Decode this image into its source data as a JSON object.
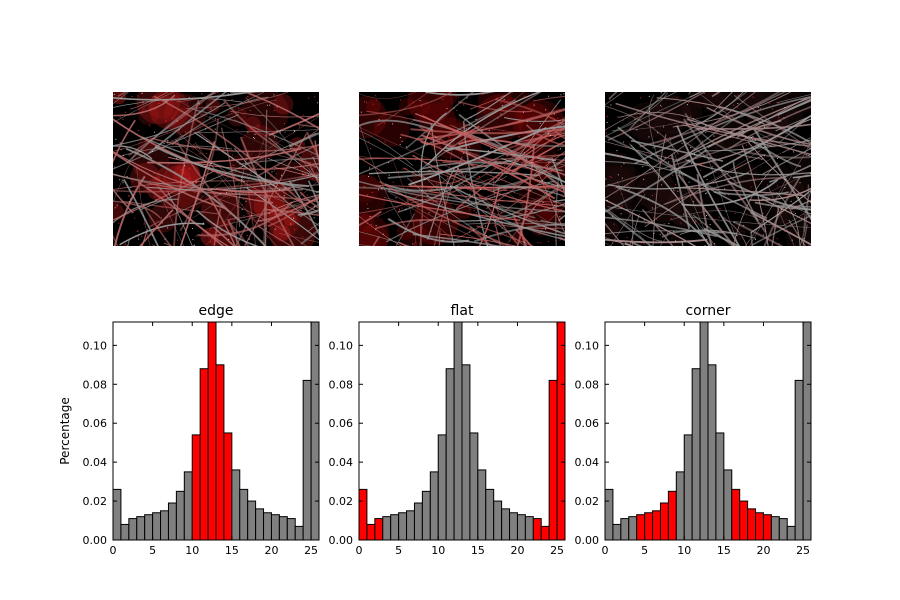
{
  "colors": {
    "highlight": "#ff0000",
    "default": "#808080",
    "edge": "#000000"
  },
  "images": [
    {
      "name": "edge",
      "tint": "#c21a1a",
      "fibers": "#b86a6a"
    },
    {
      "name": "flat",
      "tint": "#7a0707",
      "fibers": "#c06060"
    },
    {
      "name": "corner",
      "tint": "#2a1010",
      "fibers": "#a78a8a"
    }
  ],
  "chart_data": [
    {
      "type": "bar",
      "title": "edge",
      "ylabel": "Percentage",
      "xlim": [
        0,
        26
      ],
      "ylim": [
        0,
        0.112
      ],
      "xticks": [
        "0",
        "5",
        "10",
        "15",
        "20",
        "25"
      ],
      "yticks": [
        "0.00",
        "0.02",
        "0.04",
        "0.06",
        "0.08",
        "0.10"
      ],
      "bins": [
        0,
        1,
        2,
        3,
        4,
        5,
        6,
        7,
        8,
        9,
        10,
        11,
        12,
        13,
        14,
        15,
        16,
        17,
        18,
        19,
        20,
        21,
        22,
        23,
        24,
        25
      ],
      "values": [
        0.026,
        0.008,
        0.011,
        0.012,
        0.013,
        0.014,
        0.015,
        0.019,
        0.025,
        0.035,
        0.054,
        0.088,
        0.115,
        0.09,
        0.055,
        0.036,
        0.026,
        0.02,
        0.016,
        0.014,
        0.013,
        0.012,
        0.011,
        0.007,
        0.082,
        0.115
      ],
      "highlighted_bins": [
        10,
        11,
        12,
        13,
        14
      ]
    },
    {
      "type": "bar",
      "title": "flat",
      "ylabel": "",
      "xlim": [
        0,
        26
      ],
      "ylim": [
        0,
        0.112
      ],
      "xticks": [
        "0",
        "5",
        "10",
        "15",
        "20",
        "25"
      ],
      "yticks": [
        "0.00",
        "0.02",
        "0.04",
        "0.06",
        "0.08",
        "0.10"
      ],
      "bins": [
        0,
        1,
        2,
        3,
        4,
        5,
        6,
        7,
        8,
        9,
        10,
        11,
        12,
        13,
        14,
        15,
        16,
        17,
        18,
        19,
        20,
        21,
        22,
        23,
        24,
        25
      ],
      "values": [
        0.026,
        0.008,
        0.011,
        0.012,
        0.013,
        0.014,
        0.015,
        0.019,
        0.025,
        0.035,
        0.054,
        0.088,
        0.115,
        0.09,
        0.055,
        0.036,
        0.026,
        0.02,
        0.016,
        0.014,
        0.013,
        0.012,
        0.011,
        0.007,
        0.082,
        0.115
      ],
      "highlighted_bins": [
        0,
        1,
        2,
        22,
        23,
        24,
        25
      ]
    },
    {
      "type": "bar",
      "title": "corner",
      "ylabel": "",
      "xlim": [
        0,
        26
      ],
      "ylim": [
        0,
        0.112
      ],
      "xticks": [
        "0",
        "5",
        "10",
        "15",
        "20",
        "25"
      ],
      "yticks": [
        "0.00",
        "0.02",
        "0.04",
        "0.06",
        "0.08",
        "0.10"
      ],
      "bins": [
        0,
        1,
        2,
        3,
        4,
        5,
        6,
        7,
        8,
        9,
        10,
        11,
        12,
        13,
        14,
        15,
        16,
        17,
        18,
        19,
        20,
        21,
        22,
        23,
        24,
        25
      ],
      "values": [
        0.026,
        0.008,
        0.011,
        0.012,
        0.013,
        0.014,
        0.015,
        0.019,
        0.025,
        0.035,
        0.054,
        0.088,
        0.115,
        0.09,
        0.055,
        0.036,
        0.026,
        0.02,
        0.016,
        0.014,
        0.013,
        0.012,
        0.011,
        0.007,
        0.082,
        0.115
      ],
      "highlighted_bins": [
        4,
        5,
        6,
        7,
        8,
        16,
        17,
        18,
        19,
        20
      ]
    }
  ]
}
